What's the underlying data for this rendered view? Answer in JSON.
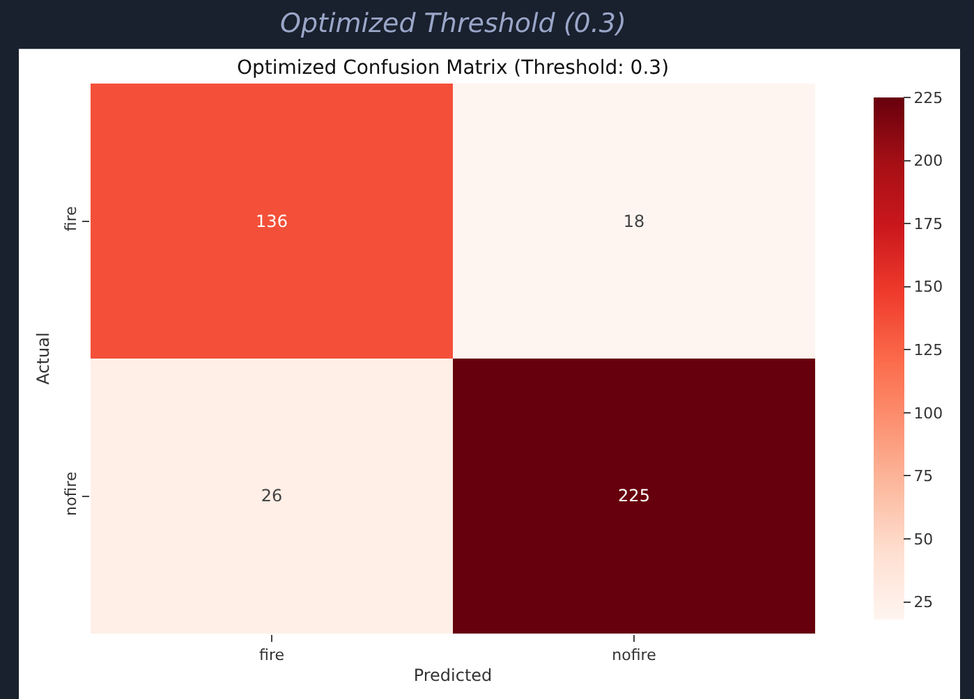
{
  "chart_data": {
    "type": "heatmap",
    "subtitle": "Optimized Threshold (0.3)",
    "title": "Optimized Confusion Matrix (Threshold: 0.3)",
    "xlabel": "Predicted",
    "ylabel": "Actual",
    "categories": [
      "fire",
      "nofire"
    ],
    "y_categories": [
      "fire",
      "nofire"
    ],
    "cells": [
      [
        136,
        18
      ],
      [
        26,
        225
      ]
    ],
    "clim": [
      18,
      225
    ],
    "cticks": [
      25,
      50,
      75,
      100,
      125,
      150,
      175,
      200,
      225
    ],
    "data_labels": true
  }
}
